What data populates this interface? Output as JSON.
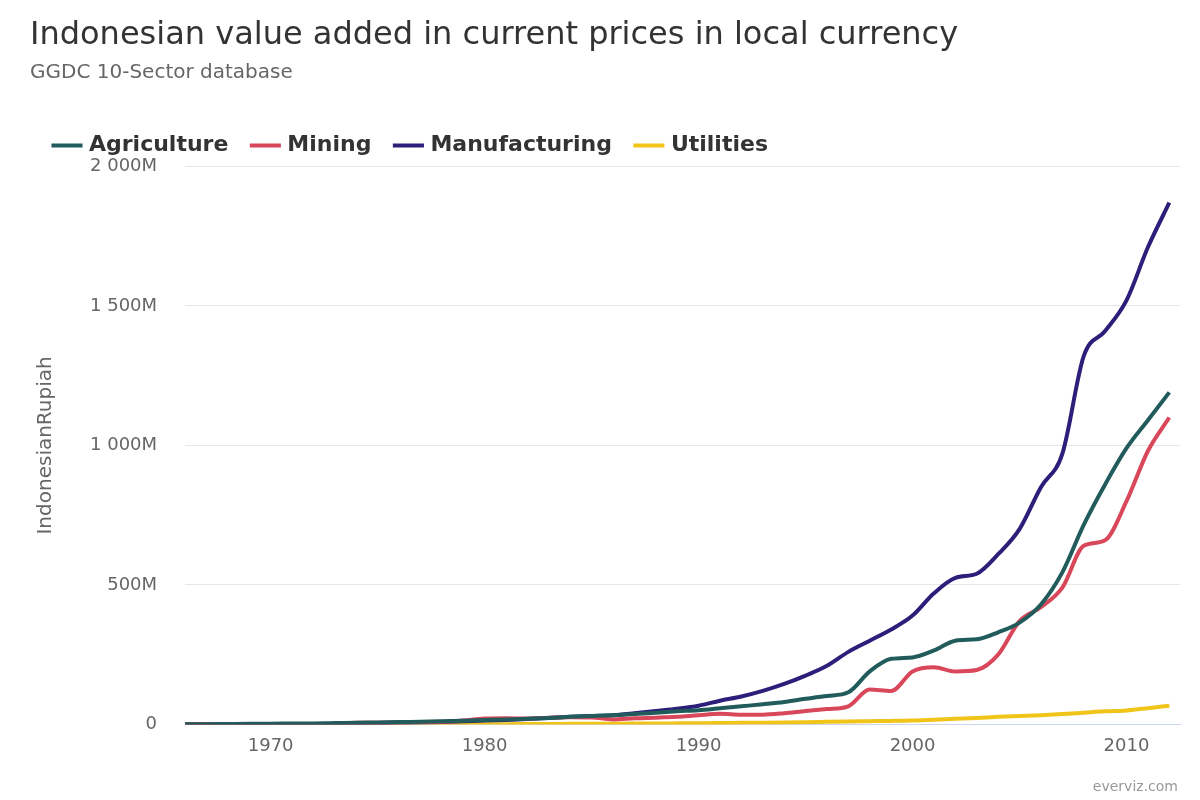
{
  "chart_data": {
    "type": "line",
    "title": "Indonesian value added in current prices in local currency",
    "subtitle": "GGDC 10-Sector database",
    "y_label": "IndonesianRupiah",
    "credit": "everviz.com",
    "legend": "top-left",
    "grid": true,
    "x": [
      1966,
      1967,
      1968,
      1969,
      1970,
      1971,
      1972,
      1973,
      1974,
      1975,
      1976,
      1977,
      1978,
      1979,
      1980,
      1981,
      1982,
      1983,
      1984,
      1985,
      1986,
      1987,
      1988,
      1989,
      1990,
      1991,
      1992,
      1993,
      1994,
      1995,
      1996,
      1997,
      1998,
      1999,
      2000,
      2001,
      2002,
      2003,
      2004,
      2005,
      2006,
      2007,
      2008,
      2009,
      2010,
      2011,
      2012
    ],
    "xlim": [
      1966,
      2012.5
    ],
    "xticks": [
      1970,
      1980,
      1990,
      2000,
      2010
    ],
    "ylim": [
      0,
      2000
    ],
    "yticks": [
      0,
      {
        "value": 500,
        "label": "500M"
      },
      {
        "value": 1000,
        "label": "1 000M"
      },
      {
        "value": 1500,
        "label": "1 500M"
      },
      {
        "value": 2000,
        "label": "2 000M"
      }
    ],
    "series": [
      {
        "name": "Agriculture",
        "color": "#215b5b",
        "values": [
          0.5,
          0.9,
          1.6,
          2.3,
          2.7,
          2.9,
          3.3,
          4.6,
          6.2,
          7,
          8.2,
          9.9,
          11,
          13,
          15.5,
          18,
          20,
          23,
          27,
          30,
          33,
          37,
          42,
          47,
          51,
          58,
          65,
          72,
          80,
          92,
          102,
          115,
          190,
          235,
          240,
          265,
          300,
          305,
          330,
          365,
          430,
          545,
          715,
          860,
          990,
          1090,
          1190
        ]
      },
      {
        "name": "Mining",
        "color": "#d9475b",
        "values": [
          0.1,
          0.2,
          0.4,
          0.6,
          0.8,
          1,
          1.6,
          2.6,
          5.5,
          6.1,
          7.1,
          8.8,
          9.3,
          14,
          21,
          22,
          21,
          24,
          26,
          25,
          18,
          22,
          24,
          27,
          33,
          38,
          35,
          35,
          40,
          48,
          55,
          65,
          125,
          120,
          190,
          205,
          190,
          195,
          250,
          370,
          420,
          490,
          640,
          660,
          800,
          980,
          1100
        ]
      },
      {
        "name": "Manufacturing",
        "color": "#2b1f7a",
        "values": [
          0.1,
          0.3,
          0.6,
          0.9,
          1.1,
          1.3,
          1.8,
          2.7,
          3.7,
          4.7,
          5.8,
          7,
          8.5,
          11,
          14,
          16,
          19,
          23,
          27,
          30,
          33,
          40,
          48,
          56,
          67,
          85,
          100,
          120,
          145,
          175,
          210,
          260,
          300,
          340,
          390,
          470,
          525,
          540,
          610,
          700,
          850,
          970,
          1320,
          1410,
          1520,
          1710,
          1870
        ]
      },
      {
        "name": "Utilities",
        "color": "#f0c419",
        "values": [
          0.01,
          0.02,
          0.03,
          0.05,
          0.07,
          0.09,
          0.1,
          0.12,
          0.17,
          0.22,
          0.3,
          0.36,
          0.45,
          0.55,
          0.7,
          0.9,
          1.2,
          1.5,
          1.9,
          2.2,
          2.5,
          2.8,
          3.2,
          3.7,
          4.2,
          4.8,
          5.6,
          6.2,
          7,
          8,
          9.3,
          10.5,
          11.5,
          12.5,
          14,
          17,
          20,
          23,
          27,
          30,
          33,
          37,
          42,
          47,
          50,
          58,
          67
        ]
      }
    ]
  }
}
